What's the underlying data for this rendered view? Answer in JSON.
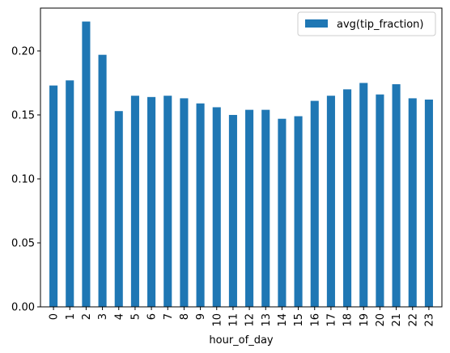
{
  "chart_data": {
    "type": "bar",
    "categories": [
      "0",
      "1",
      "2",
      "3",
      "4",
      "5",
      "6",
      "7",
      "8",
      "9",
      "10",
      "11",
      "12",
      "13",
      "14",
      "15",
      "16",
      "17",
      "18",
      "19",
      "20",
      "21",
      "22",
      "23"
    ],
    "series": [
      {
        "name": "avg(tip_fraction)",
        "values": [
          0.173,
          0.177,
          0.223,
          0.197,
          0.153,
          0.165,
          0.164,
          0.165,
          0.163,
          0.159,
          0.156,
          0.15,
          0.154,
          0.154,
          0.147,
          0.149,
          0.161,
          0.165,
          0.17,
          0.175,
          0.166,
          0.174,
          0.163,
          0.162
        ]
      }
    ],
    "xlabel": "hour_of_day",
    "ylabel": "",
    "ylim": [
      0,
      0.2335
    ],
    "yticks": [
      0.0,
      0.05,
      0.1,
      0.15,
      0.2
    ],
    "ytick_labels": [
      "0.00",
      "0.05",
      "0.10",
      "0.15",
      "0.20"
    ],
    "grid": false,
    "legend_position": "top-right",
    "bar_color": "#1f77b4"
  }
}
